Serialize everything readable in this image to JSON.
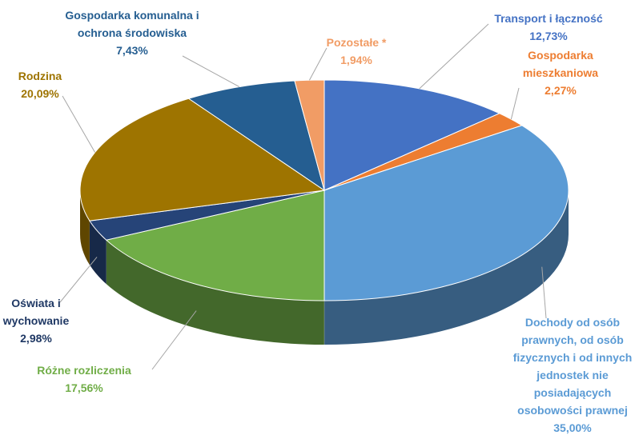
{
  "chart_data": {
    "type": "pie",
    "categories": [
      "Transport i łączność",
      "Gospodarka mieszkaniowa",
      "Dochody od osób prawnych, od osób fizycznych i od innych jednostek nie posiadających osobowości prawnej",
      "Różne rozliczenia",
      "Oświata i wychowanie",
      "Rodzina",
      "Gospodarka komunalna i ochrona środowiska",
      "Pozostałe *"
    ],
    "values": [
      12.73,
      2.27,
      35.0,
      17.56,
      2.98,
      20.09,
      7.43,
      1.94
    ],
    "value_labels": [
      "12,73%",
      "2,27%",
      "35,00%",
      "17,56%",
      "2,98%",
      "20,09%",
      "7,43%",
      "1,94%"
    ],
    "colors": [
      "#4472c4",
      "#ed7d31",
      "#5b9bd5",
      "#70ad47",
      "#264478",
      "#9e7400",
      "#255e91",
      "#f19c65"
    ]
  }
}
